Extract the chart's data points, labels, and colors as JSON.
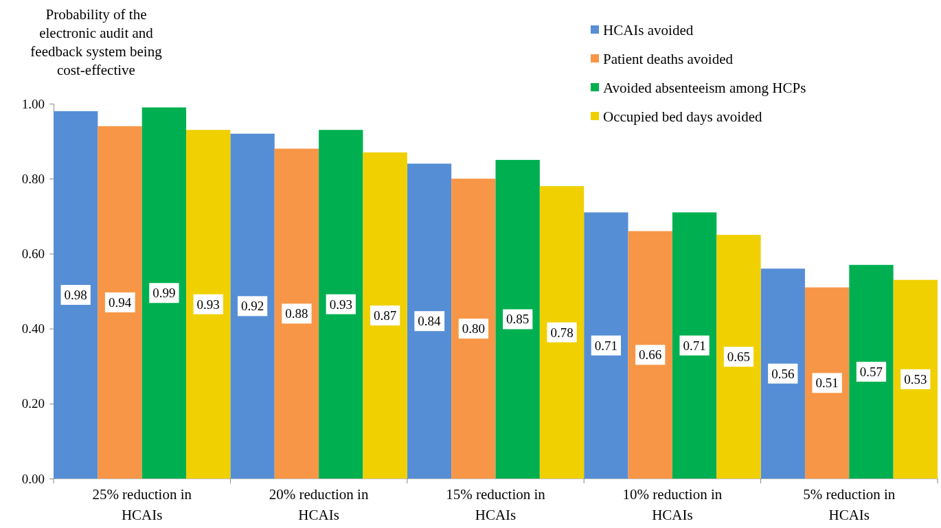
{
  "chart_data": {
    "type": "bar",
    "ylabel": "Probability of the electronic audit and feedback system being cost-effective",
    "categories": [
      "25% reduction in HCAIs",
      "20% reduction in HCAIs",
      "15% reduction in HCAIs",
      "10% reduction in HCAIs",
      "5% reduction in HCAIs"
    ],
    "series": [
      {
        "name": "HCAIs avoided",
        "color": "#558ed5",
        "values": [
          0.98,
          0.92,
          0.84,
          0.71,
          0.56
        ],
        "value_labels": [
          "0.98",
          "0.92",
          "0.84",
          "0.71",
          "0.56"
        ]
      },
      {
        "name": "Patient deaths avoided",
        "color": "#f79646",
        "values": [
          0.94,
          0.88,
          0.8,
          0.66,
          0.51
        ],
        "value_labels": [
          "0.94",
          "0.88",
          "0.80",
          "0.66",
          "0.51"
        ]
      },
      {
        "name": "Avoided absenteeism among HCPs",
        "color": "#00b050",
        "values": [
          0.99,
          0.93,
          0.85,
          0.71,
          0.57
        ],
        "value_labels": [
          "0.99",
          "0.93",
          "0.85",
          "0.71",
          "0.57"
        ]
      },
      {
        "name": "Occupied bed days avoided",
        "color": "#f0d000",
        "values": [
          0.93,
          0.87,
          0.78,
          0.65,
          0.53
        ],
        "value_labels": [
          "0.93",
          "0.87",
          "0.78",
          "0.65",
          "0.53"
        ]
      }
    ],
    "ylim": [
      0,
      1
    ],
    "yticks": [
      {
        "value": 0,
        "label": "0.00"
      },
      {
        "value": 0.2,
        "label": "0.20"
      },
      {
        "value": 0.4,
        "label": "0.40"
      },
      {
        "value": 0.6,
        "label": "0.60"
      },
      {
        "value": 0.8,
        "label": "0.80"
      },
      {
        "value": 1,
        "label": "1.00"
      }
    ],
    "legend": "top right"
  }
}
